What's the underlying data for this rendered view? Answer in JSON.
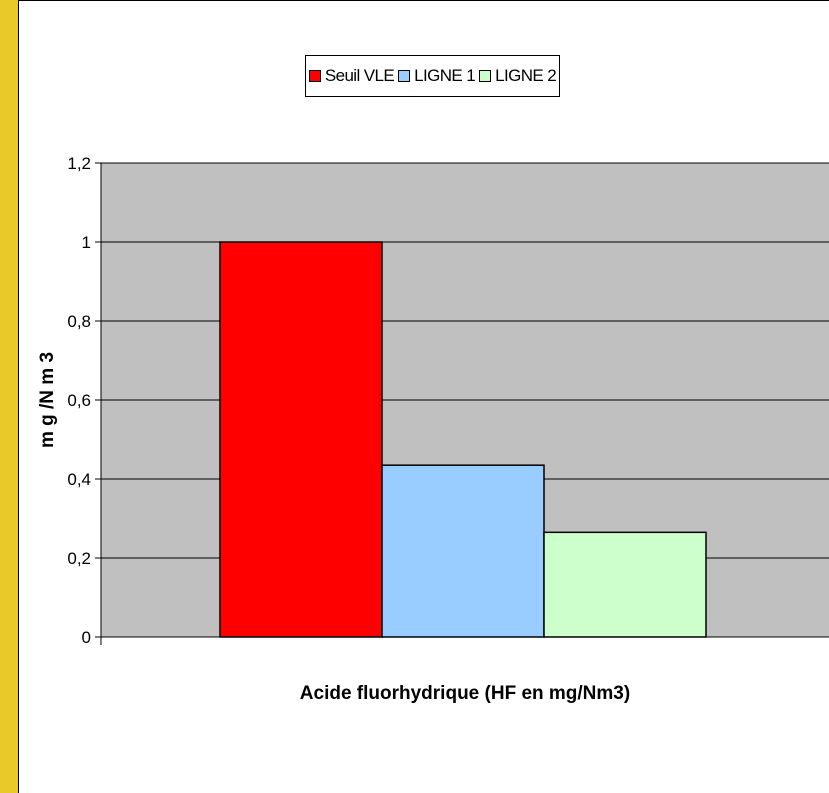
{
  "colors": {
    "plot_background": "#c0c0c0",
    "gridline": "#000000",
    "page_strip": "#e9c92a"
  },
  "chart_data": {
    "type": "bar",
    "title": "",
    "categories": [
      ""
    ],
    "series": [
      {
        "name": "Seuil VLE",
        "values": [
          1.0
        ],
        "color": "#ff0000"
      },
      {
        "name": "LIGNE 1",
        "values": [
          0.435
        ],
        "color": "#99ccff"
      },
      {
        "name": "LIGNE 2",
        "values": [
          0.265
        ],
        "color": "#ccffcc"
      }
    ],
    "xlabel": "Acide fluorhydrique (HF en mg/Nm3)",
    "ylabel": "m g /N m 3",
    "ylim": [
      0,
      1.2
    ],
    "yticks": [
      {
        "value": 0,
        "label": "0"
      },
      {
        "value": 0.2,
        "label": "0,2"
      },
      {
        "value": 0.4,
        "label": "0,4"
      },
      {
        "value": 0.6,
        "label": "0,6"
      },
      {
        "value": 0.8,
        "label": "0,8"
      },
      {
        "value": 1.0,
        "label": "1"
      },
      {
        "value": 1.2,
        "label": "1,2"
      }
    ],
    "grid": true,
    "legend_position": "top"
  }
}
